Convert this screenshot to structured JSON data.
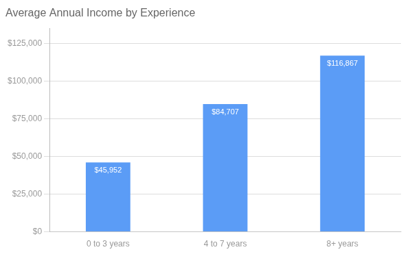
{
  "chart_data": {
    "type": "bar",
    "title": "Average Annual Income by Experience",
    "categories": [
      "0 to 3 years",
      "4 to 7 years",
      "8+ years"
    ],
    "values": [
      45952,
      84707,
      116867
    ],
    "value_labels": [
      "$45,952",
      "$84,707",
      "$116,867"
    ],
    "data_labels": true,
    "color": "#5b9cf6",
    "ylim": [
      0,
      135000
    ],
    "yticks": [
      {
        "value": 0,
        "label": "$0"
      },
      {
        "value": 25000,
        "label": "$25,000"
      },
      {
        "value": 50000,
        "label": "$50,000"
      },
      {
        "value": 75000,
        "label": "$75,000"
      },
      {
        "value": 100000,
        "label": "$100,000"
      },
      {
        "value": 125000,
        "label": "$125,000"
      }
    ],
    "grid": true
  }
}
